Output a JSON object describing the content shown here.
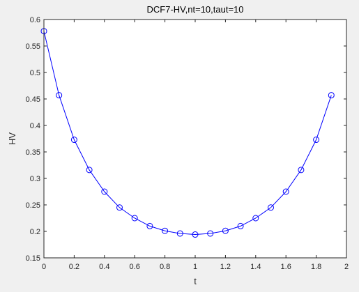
{
  "chart_data": {
    "type": "line",
    "title": "DCF7-HV,nt=10,taut=10",
    "xlabel": "t",
    "ylabel": "HV",
    "xlim": [
      0,
      2
    ],
    "ylim": [
      0.15,
      0.6
    ],
    "xticks": [
      0,
      0.2,
      0.4,
      0.6,
      0.8,
      1,
      1.2,
      1.4,
      1.6,
      1.8,
      2
    ],
    "xtick_labels": [
      "0",
      "0.2",
      "0.4",
      "0.6",
      "0.8",
      "1",
      "1.2",
      "1.4",
      "1.6",
      "1.8",
      "2"
    ],
    "yticks": [
      0.15,
      0.2,
      0.25,
      0.3,
      0.35,
      0.4,
      0.45,
      0.5,
      0.55,
      0.6
    ],
    "ytick_labels": [
      "0.15",
      "0.2",
      "0.25",
      "0.3",
      "0.35",
      "0.4",
      "0.45",
      "0.5",
      "0.55",
      "0.6"
    ],
    "grid": false,
    "marker": "circle",
    "series": [
      {
        "x": [
          0,
          0.1,
          0.2,
          0.3,
          0.4,
          0.5,
          0.6,
          0.7,
          0.8,
          0.9,
          1.0,
          1.1,
          1.2,
          1.3,
          1.4,
          1.5,
          1.6,
          1.7,
          1.8,
          1.9
        ],
        "y": [
          0.578,
          0.457,
          0.373,
          0.316,
          0.275,
          0.245,
          0.225,
          0.21,
          0.201,
          0.196,
          0.194,
          0.196,
          0.201,
          0.21,
          0.225,
          0.245,
          0.275,
          0.316,
          0.373,
          0.457
        ],
        "color": "#0000ff"
      }
    ]
  }
}
